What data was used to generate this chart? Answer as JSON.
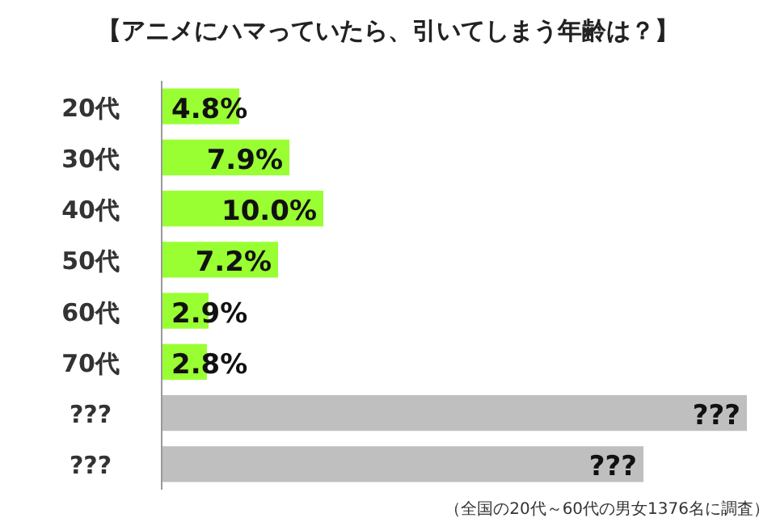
{
  "chart_data": {
    "type": "bar",
    "orientation": "horizontal",
    "title": "【アニメにハマっていたら、引いてしまう年齢は？】",
    "categories": [
      "20代",
      "30代",
      "40代",
      "50代",
      "60代",
      "70代",
      "???",
      "???"
    ],
    "values": [
      4.8,
      7.9,
      10.0,
      7.2,
      2.9,
      2.8,
      36.2,
      29.8
    ],
    "colors": [
      "#99ff33",
      "#99ff33",
      "#99ff33",
      "#99ff33",
      "#99ff33",
      "#99ff33",
      "#bfbfbf",
      "#bfbfbf"
    ],
    "value_labels": [
      "4.8%",
      "7.9%",
      "10.0%",
      "7.2%",
      "2.9%",
      "2.8%",
      "???",
      "???"
    ],
    "tick_labels": "y",
    "annotations": [
      "（全国の20代～60代の男女1376名に調査）"
    ]
  }
}
